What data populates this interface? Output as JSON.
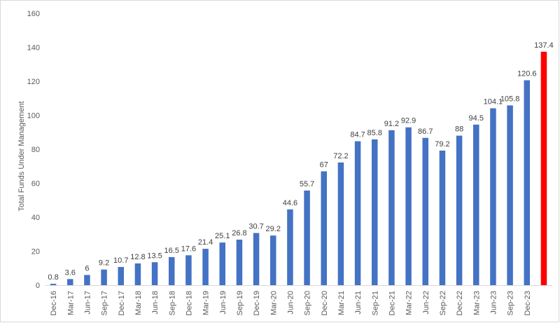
{
  "chart_data": {
    "type": "bar",
    "title": "",
    "xlabel": "",
    "ylabel": "Total Funds Under Management",
    "ylim": [
      0,
      160
    ],
    "yticks": [
      0,
      20,
      40,
      60,
      80,
      100,
      120,
      140,
      160
    ],
    "grid": false,
    "legend": "none",
    "categories": [
      "Dec-16",
      "Mar-17",
      "Jun-17",
      "Sep-17",
      "Dec-17",
      "Mar-18",
      "Jun-18",
      "Sep-18",
      "Dec-18",
      "Mar-19",
      "Jun-19",
      "Sep-19",
      "Dec-19",
      "Mar-20",
      "Jun-20",
      "Sep-20",
      "Dec-20",
      "Mar-21",
      "Jun-21",
      "Sep-21",
      "Dec-21",
      "Mar-22",
      "Jun-22",
      "Sep-22",
      "Dec-22",
      "Mar-23",
      "Jun-23",
      "Sep-23",
      "Dec-23",
      ""
    ],
    "values": [
      0.8,
      3.6,
      6,
      9.2,
      10.7,
      12.8,
      13.5,
      16.5,
      17.6,
      21.4,
      25.1,
      26.8,
      30.7,
      29.2,
      44.6,
      55.7,
      67,
      72.2,
      84.7,
      85.8,
      91.2,
      92.9,
      86.7,
      79.2,
      88,
      94.5,
      104.1,
      105.8,
      120.6,
      137.4
    ],
    "value_labels": [
      "0.8",
      "3.6",
      "6",
      "9.2",
      "10.7",
      "12.8",
      "13.5",
      "16.5",
      "17.6",
      "21.4",
      "25.1",
      "26.8",
      "30.7",
      "29.2",
      "44.6",
      "55.7",
      "67",
      "72.2",
      "84.7",
      "85.8",
      "91.2",
      "92.9",
      "86.7",
      "79.2",
      "88",
      "94.5",
      "104.1",
      "105.8",
      "120.6",
      "137.4"
    ],
    "colors": {
      "bar": "#4472c4",
      "highlight": "#ff0000",
      "axis": "#d9d9d9",
      "tick_text": "#595959",
      "label_text": "#404040"
    },
    "highlight_index": 29
  }
}
